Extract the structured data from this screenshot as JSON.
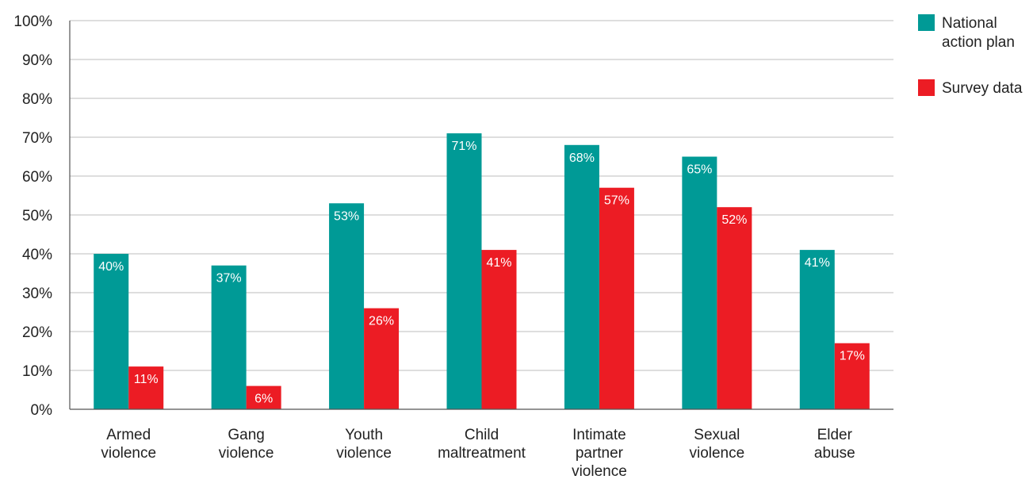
{
  "chart_data": {
    "type": "bar",
    "title": "",
    "xlabel": "",
    "ylabel": "",
    "ylim": [
      0,
      100
    ],
    "yticks": [
      "0%",
      "10%",
      "20%",
      "30%",
      "40%",
      "50%",
      "60%",
      "70%",
      "80%",
      "90%",
      "100%"
    ],
    "grid": true,
    "legend_position": "top-right",
    "categories": [
      [
        "Armed",
        "violence"
      ],
      [
        "Gang",
        "violence"
      ],
      [
        "Youth",
        "violence"
      ],
      [
        "Child",
        "maltreatment"
      ],
      [
        "Intimate",
        "partner",
        "violence"
      ],
      [
        "Sexual",
        "violence"
      ],
      [
        "Elder",
        "abuse"
      ]
    ],
    "series": [
      {
        "name": "National action plan",
        "legend_lines": [
          "National",
          "action plan"
        ],
        "color": "#009a96",
        "values": [
          40,
          37,
          53,
          71,
          68,
          65,
          41
        ],
        "labels": [
          "40%",
          "37%",
          "53%",
          "71%",
          "68%",
          "65%",
          "41%"
        ]
      },
      {
        "name": "Survey data",
        "legend_lines": [
          "Survey data"
        ],
        "color": "#ec1c24",
        "values": [
          11,
          6,
          26,
          41,
          57,
          52,
          17
        ],
        "labels": [
          "11%",
          "6%",
          "26%",
          "41%",
          "57%",
          "52%",
          "17%"
        ]
      }
    ]
  }
}
